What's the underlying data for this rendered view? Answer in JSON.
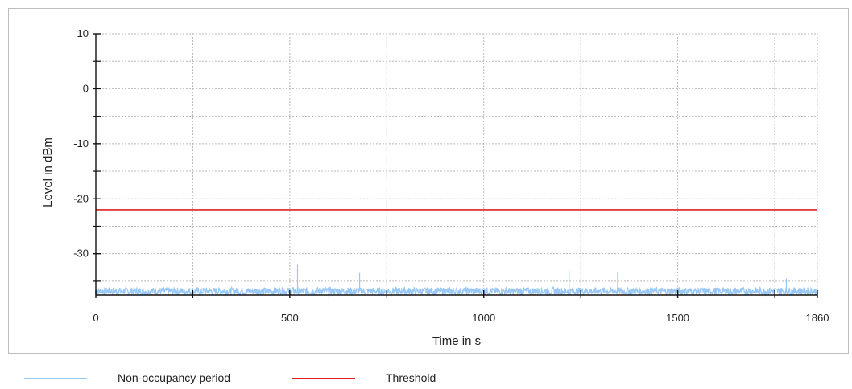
{
  "chart_data": {
    "type": "line",
    "xlabel": "Time in s",
    "ylabel": "Level in dBm",
    "xlim": [
      0,
      1860
    ],
    "ylim": [
      -37.5,
      10
    ],
    "x_ticks_labeled": [
      0,
      500,
      1000,
      1500,
      1860
    ],
    "x_tick_labels": [
      "0",
      "500",
      "1000",
      "1500",
      "1860"
    ],
    "x_minor_ticks": [
      250,
      750,
      1250,
      1750
    ],
    "y_ticks_labeled": [
      10,
      0,
      -10,
      -20,
      -30
    ],
    "y_tick_labels": [
      "10",
      "0",
      "-10",
      "-20",
      "-30"
    ],
    "y_minor_ticks": [
      5,
      -5,
      -15,
      -25,
      -35
    ],
    "grid": true,
    "legend_position": "bottom-left",
    "series": [
      {
        "name": "Non-occupancy period",
        "color": "#99c8f5",
        "baseline": -36.8,
        "noise_amplitude": 0.7,
        "spikes": [
          {
            "x": 520,
            "y": -32.0
          },
          {
            "x": 680,
            "y": -33.5
          },
          {
            "x": 1220,
            "y": -33.0
          },
          {
            "x": 1345,
            "y": -33.3
          },
          {
            "x": 1780,
            "y": -34.5
          }
        ]
      },
      {
        "name": "Threshold",
        "color": "#e02020",
        "x": [
          0,
          1860
        ],
        "y": [
          -22,
          -22
        ]
      }
    ]
  }
}
